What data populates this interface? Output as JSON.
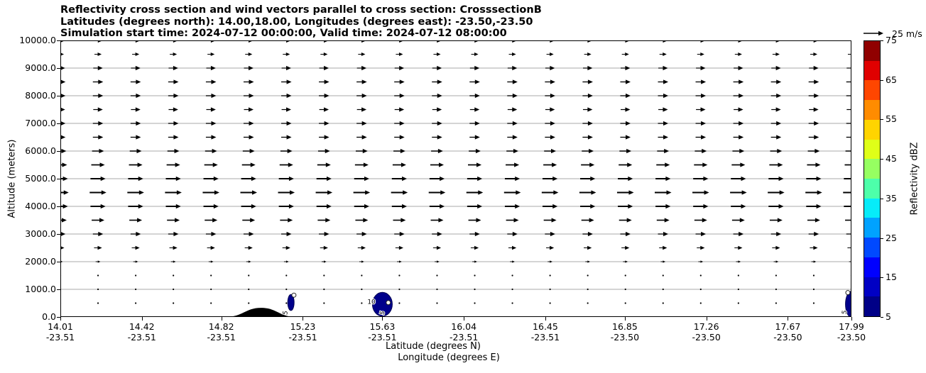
{
  "title": {
    "line1": "Reflectivity cross section and wind vectors parallel to cross section: CrosssectionB",
    "line2": "Latitudes (degrees north): 14.00,18.00, Longitudes (degrees east): -23.50,-23.50",
    "line3": "Simulation start time: 2024-07-12 00:00:00, Valid time: 2024-07-12 08:00:00"
  },
  "axes": {
    "y_label": "Altitude (meters)",
    "x_label_line1": "Latitude (degrees N)",
    "x_label_line2": "Longitude (degrees E)",
    "y_ticks": [
      "10000.0",
      "9000.0",
      "8000.0",
      "7000.0",
      "6000.0",
      "5000.0",
      "4000.0",
      "3000.0",
      "2000.0",
      "1000.0",
      "0.0"
    ],
    "x_ticks": [
      {
        "lat": "14.01",
        "lon": "-23.51"
      },
      {
        "lat": "14.42",
        "lon": "-23.51"
      },
      {
        "lat": "14.82",
        "lon": "-23.51"
      },
      {
        "lat": "15.23",
        "lon": "-23.51"
      },
      {
        "lat": "15.63",
        "lon": "-23.51"
      },
      {
        "lat": "16.04",
        "lon": "-23.51"
      },
      {
        "lat": "16.45",
        "lon": "-23.51"
      },
      {
        "lat": "16.85",
        "lon": "-23.50"
      },
      {
        "lat": "17.26",
        "lon": "-23.50"
      },
      {
        "lat": "17.67",
        "lon": "-23.50"
      },
      {
        "lat": "17.99",
        "lon": "-23.50"
      }
    ]
  },
  "colorbar": {
    "label": "Reflectivity dBZ",
    "tick_labels": [
      "5",
      "15",
      "25",
      "35",
      "45",
      "55",
      "65",
      "75"
    ],
    "tick_values": [
      5,
      15,
      25,
      35,
      45,
      55,
      65,
      75
    ],
    "colors_bottom_to_top": [
      "#000087",
      "#0000c4",
      "#0000ff",
      "#0049ff",
      "#00a2ff",
      "#06ecf9",
      "#4dffaa",
      "#96ff61",
      "#dfff18",
      "#ffd400",
      "#ff8c00",
      "#ff4600",
      "#e00000",
      "#900000"
    ]
  },
  "quiver_key": {
    "label": "25 m/s",
    "speed_ms": 25
  },
  "chart_data": {
    "type": "quiver",
    "description": "Vertical cross section: horizontal wind component parallel to cross section (arrows, all pointing toward increasing latitude) over altitude, with filled reflectivity contours (dBZ) and terrain profile.",
    "x_axis": {
      "lat_min": 14.01,
      "lat_max": 17.99,
      "grid": false
    },
    "y_axis": {
      "alt_min_m": 0,
      "alt_max_m": 10000,
      "gridlines_every_m": 1000,
      "grid_color": "#aaaaaa"
    },
    "wind_profile": {
      "n_columns": 22,
      "arrow_color": "#000000",
      "altitudes_m": [
        10000,
        9500,
        9000,
        8500,
        8000,
        7500,
        7000,
        6500,
        6000,
        5500,
        5000,
        4500,
        4000,
        3500,
        3000,
        2500,
        2000,
        1500,
        1000,
        500
      ],
      "speeds_ms": [
        12,
        9,
        12,
        13,
        13,
        12,
        13,
        13,
        15,
        17,
        19,
        21,
        19,
        16,
        13,
        10,
        6,
        2,
        1.5,
        0.8
      ]
    },
    "reflectivity_regions": [
      {
        "lat": 15.17,
        "alt_center_m": 525,
        "lat_halfwidth_deg": 0.016,
        "alt_halfheight_m": 290,
        "dbz_range": "5-10",
        "color": "#00008b",
        "contour_labels": [
          {
            "text": "5",
            "lat": 15.152,
            "alt_m": 140,
            "rotate": -80
          }
        ],
        "ring_lat": 15.185,
        "ring_alt_m": 790
      },
      {
        "lat": 15.63,
        "alt_center_m": 460,
        "lat_halfwidth_deg": 0.05,
        "alt_halfheight_m": 430,
        "dbz_range": "5-15",
        "color": "#00008b",
        "contour_labels": [
          {
            "text": "10",
            "lat": 15.575,
            "alt_m": 480,
            "rotate": 0
          },
          {
            "text": "5",
            "lat": 15.64,
            "alt_m": 130,
            "rotate": -75
          }
        ],
        "ring_lat": 15.66,
        "ring_alt_m": 520
      },
      {
        "lat": 17.99,
        "alt_center_m": 460,
        "lat_halfwidth_deg": 0.03,
        "alt_halfheight_m": 470,
        "dbz_range": "5-10",
        "color": "#00008b",
        "contour_labels": [
          {
            "text": "5",
            "lat": 17.965,
            "alt_m": 160,
            "rotate": -80
          }
        ],
        "ring_lat": 17.972,
        "ring_alt_m": 880
      }
    ],
    "terrain": {
      "center_lat": 15.02,
      "half_width_deg": 0.18,
      "peak_alt_m": 330,
      "color": "#000000"
    },
    "colorbar_range_dbz": [
      5,
      75
    ],
    "colorbar_step_dbz": 5
  }
}
